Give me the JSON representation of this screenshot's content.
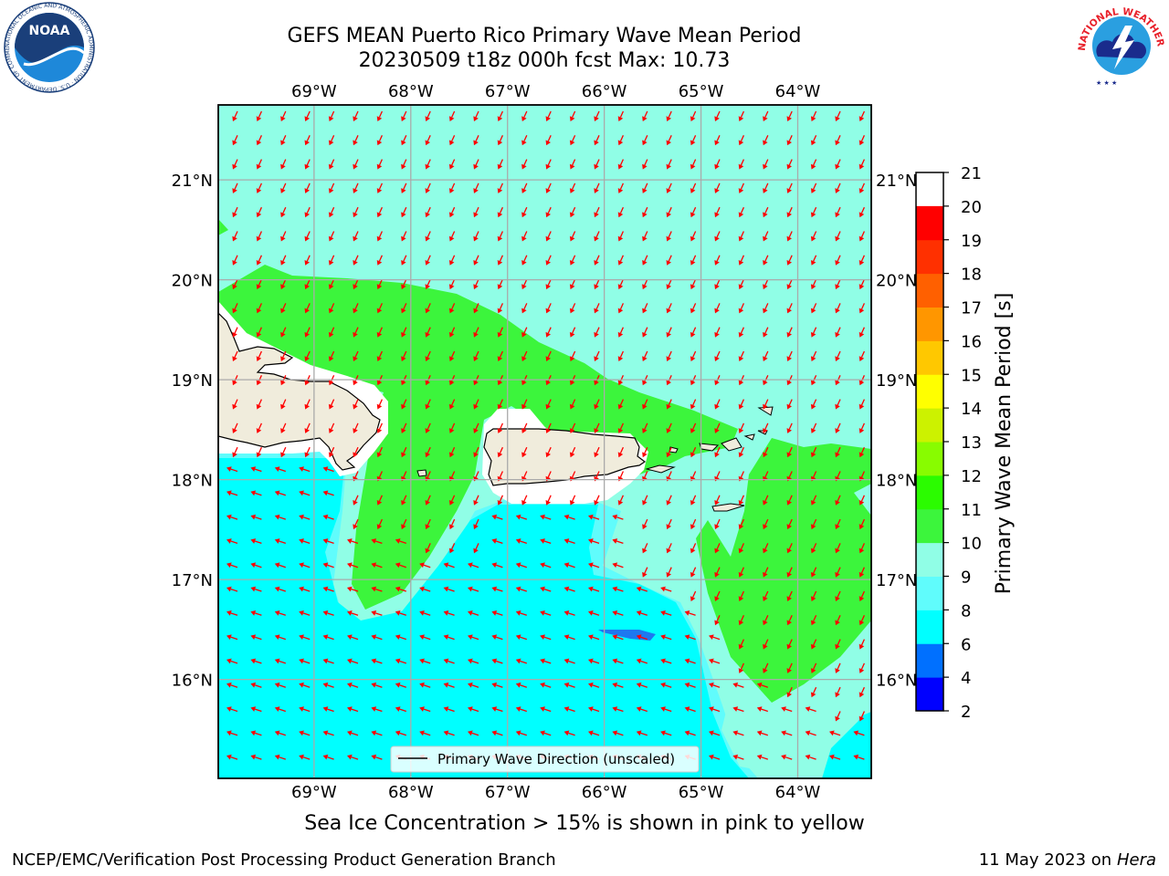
{
  "title": {
    "line1": "GEFS MEAN Puerto Rico Primary Wave Mean Period",
    "line2": "20230509 t18z 000h fcst   Max: 10.73"
  },
  "subtitle": "Sea Ice Concentration > 15% is shown in pink to yellow",
  "footer": {
    "left": "NCEP/EMC/Verification Post Processing Product Generation Branch",
    "right_date": "11 May 2023 on",
    "right_host": "Hera"
  },
  "logos": {
    "noaa": {
      "text": "NOAA",
      "ring": "NATIONAL OCEANIC AND ATMOSPHERIC ADMINISTRATION · U.S. DEPARTMENT OF COMMERCE"
    },
    "nws": {
      "ring": "NATIONAL WEATHER SERVICE"
    }
  },
  "map": {
    "lon_ticks": [
      "69°W",
      "68°W",
      "67°W",
      "66°W",
      "65°W",
      "64°W"
    ],
    "lon_values": [
      -69,
      -68,
      -67,
      -66,
      -65,
      -64
    ],
    "lat_ticks": [
      "21°N",
      "20°N",
      "19°N",
      "18°N",
      "17°N",
      "16°N"
    ],
    "lat_values": [
      21,
      20,
      19,
      18,
      17,
      16
    ],
    "extent": {
      "lon_min": -69.99,
      "lon_max": -63.24,
      "lat_min": 15.01,
      "lat_max": 21.75
    },
    "legend_label": "Primary Wave Direction (unscaled)",
    "arrow_color": "#ff0000",
    "land_color": "#f0ecdc"
  },
  "colorbar": {
    "label": "Primary Wave Mean Period [s]",
    "ticks": [
      "2",
      "4",
      "6",
      "8",
      "9",
      "10",
      "11",
      "12",
      "13",
      "14",
      "15",
      "16",
      "17",
      "18",
      "19",
      "20",
      "21"
    ],
    "colors": [
      "#0000ff",
      "#0070ff",
      "#00ffff",
      "#60fcfc",
      "#90fee6",
      "#3cf53c",
      "#2bfc00",
      "#88fc00",
      "#ccf200",
      "#ffff00",
      "#ffc800",
      "#ff9600",
      "#ff6000",
      "#ff3000",
      "#ff0000"
    ]
  },
  "chart_data": {
    "type": "heatmap",
    "title": "GEFS MEAN Puerto Rico Primary Wave Mean Period",
    "units": "s",
    "max": 10.73,
    "forecast": "20230509 t18z 000h fcst",
    "field_levels": [
      {
        "range": [
          6,
          8
        ],
        "region": "Caribbean Sea south of Hispaniola and Puerto Rico"
      },
      {
        "range": [
          8,
          9
        ],
        "region": "narrow transition bands along the southern coasts"
      },
      {
        "range": [
          9,
          10
        ],
        "region": "Atlantic Ocean north of the islands"
      },
      {
        "range": [
          10,
          11
        ],
        "region": "band along north coasts, Mona Passage, east of 64.5°W"
      },
      {
        "range": [
          4,
          6
        ],
        "region": "small patch near 16.5°N 65.7°W"
      }
    ],
    "direction": {
      "atlantic": "toward south-southwest",
      "caribbean": "toward west-northwest"
    }
  }
}
